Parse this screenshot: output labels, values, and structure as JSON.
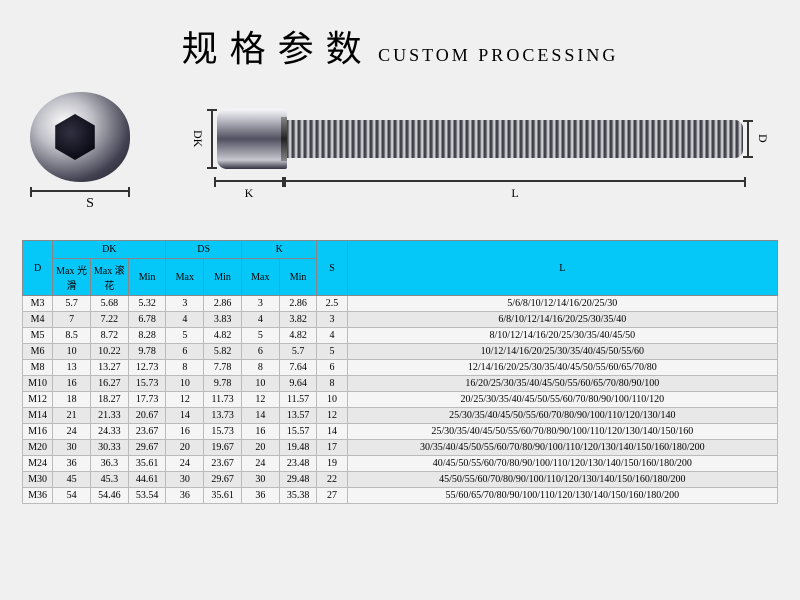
{
  "header": {
    "title_cn": "规格参数",
    "title_en": "CUSTOM PROCESSING"
  },
  "diagram": {
    "dim_s": "S",
    "dim_dk": "DK",
    "dim_d": "D",
    "dim_k": "K",
    "dim_l": "L"
  },
  "table": {
    "header_bg": "#05c8f8",
    "columns_group": [
      {
        "label": "D",
        "span": 1,
        "rowspan": 2
      },
      {
        "label": "DK",
        "span": 3
      },
      {
        "label": "DS",
        "span": 2
      },
      {
        "label": "K",
        "span": 2
      },
      {
        "label": "S",
        "span": 1,
        "rowspan": 2
      },
      {
        "label": "L",
        "span": 1,
        "rowspan": 2
      }
    ],
    "columns_sub": [
      "Max 光滑",
      "Max 滚花",
      "Min",
      "Max",
      "Min",
      "Max",
      "Min"
    ],
    "col_widths": [
      "4%",
      "5%",
      "5%",
      "5%",
      "5%",
      "5%",
      "5%",
      "5%",
      "4%",
      "57%"
    ],
    "rows": [
      [
        "M3",
        "5.7",
        "5.68",
        "5.32",
        "3",
        "2.86",
        "3",
        "2.86",
        "2.5",
        "5/6/8/10/12/14/16/20/25/30"
      ],
      [
        "M4",
        "7",
        "7.22",
        "6.78",
        "4",
        "3.83",
        "4",
        "3.82",
        "3",
        "6/8/10/12/14/16/20/25/30/35/40"
      ],
      [
        "M5",
        "8.5",
        "8.72",
        "8.28",
        "5",
        "4.82",
        "5",
        "4.82",
        "4",
        "8/10/12/14/16/20/25/30/35/40/45/50"
      ],
      [
        "M6",
        "10",
        "10.22",
        "9.78",
        "6",
        "5.82",
        "6",
        "5.7",
        "5",
        "10/12/14/16/20/25/30/35/40/45/50/55/60"
      ],
      [
        "M8",
        "13",
        "13.27",
        "12.73",
        "8",
        "7.78",
        "8",
        "7.64",
        "6",
        "12/14/16/20/25/30/35/40/45/50/55/60/65/70/80"
      ],
      [
        "M10",
        "16",
        "16.27",
        "15.73",
        "10",
        "9.78",
        "10",
        "9.64",
        "8",
        "16/20/25/30/35/40/45/50/55/60/65/70/80/90/100"
      ],
      [
        "M12",
        "18",
        "18.27",
        "17.73",
        "12",
        "11.73",
        "12",
        "11.57",
        "10",
        "20/25/30/35/40/45/50/55/60/70/80/90/100/110/120"
      ],
      [
        "M14",
        "21",
        "21.33",
        "20.67",
        "14",
        "13.73",
        "14",
        "13.57",
        "12",
        "25/30/35/40/45/50/55/60/70/80/90/100/110/120/130/140"
      ],
      [
        "M16",
        "24",
        "24.33",
        "23.67",
        "16",
        "15.73",
        "16",
        "15.57",
        "14",
        "25/30/35/40/45/50/55/60/70/80/90/100/110/120/130/140/150/160"
      ],
      [
        "M20",
        "30",
        "30.33",
        "29.67",
        "20",
        "19.67",
        "20",
        "19.48",
        "17",
        "30/35/40/45/50/55/60/70/80/90/100/110/120/130/140/150/160/180/200"
      ],
      [
        "M24",
        "36",
        "36.3",
        "35.61",
        "24",
        "23.67",
        "24",
        "23.48",
        "19",
        "40/45/50/55/60/70/80/90/100/110/120/130/140/150/160/180/200"
      ],
      [
        "M30",
        "45",
        "45.3",
        "44.61",
        "30",
        "29.67",
        "30",
        "29.48",
        "22",
        "45/50/55/60/70/80/90/100/110/120/130/140/150/160/180/200"
      ],
      [
        "M36",
        "54",
        "54.46",
        "53.54",
        "36",
        "35.61",
        "36",
        "35.38",
        "27",
        "55/60/65/70/80/90/100/110/120/130/140/150/160/180/200"
      ]
    ]
  }
}
